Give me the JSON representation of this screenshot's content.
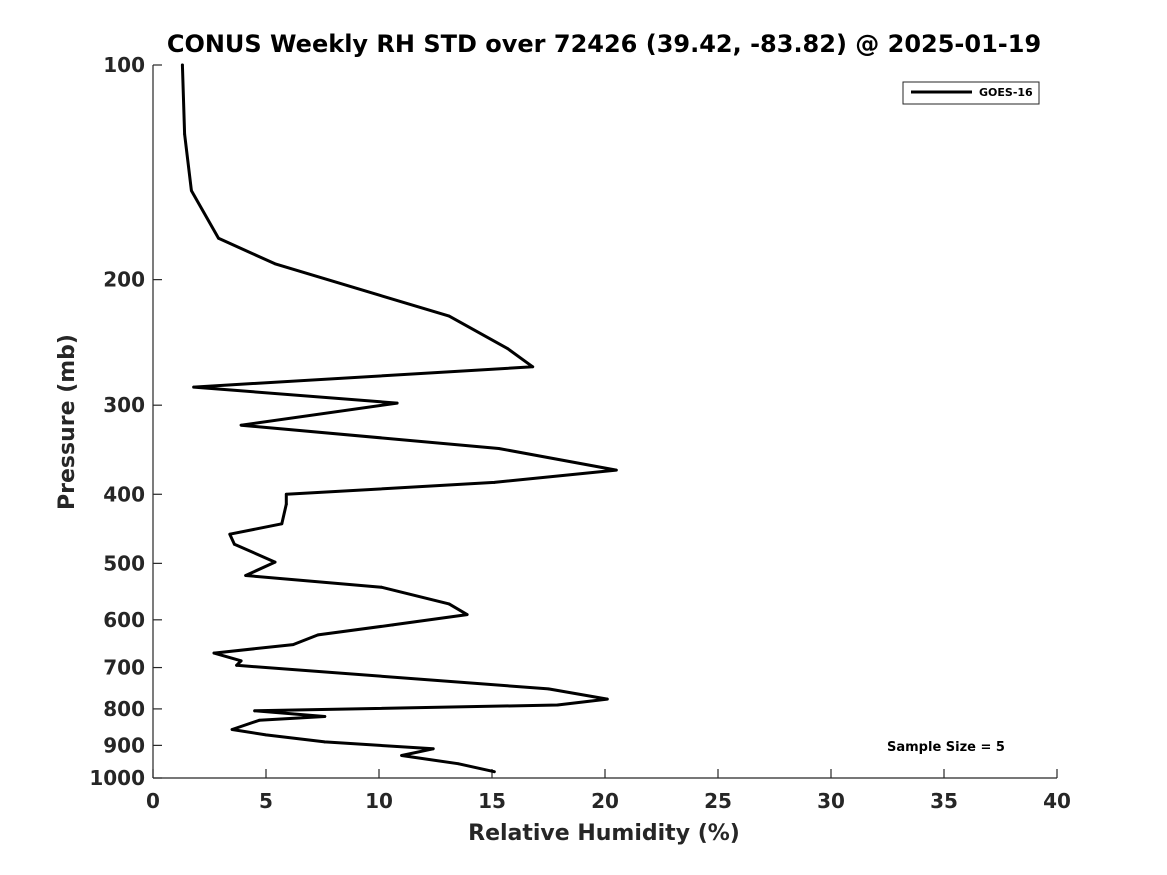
{
  "chart_data": {
    "type": "line",
    "title": "CONUS Weekly RH STD over 72426 (39.42, -83.82) @ 2025-01-19",
    "xlabel": "Relative Humidity (%)",
    "ylabel": "Pressure (mb)",
    "xlim": [
      0,
      40
    ],
    "ylim": [
      100,
      1000
    ],
    "y_scale": "log",
    "y_reversed": true,
    "grid": false,
    "x_ticks": [
      0,
      5,
      10,
      15,
      20,
      25,
      30,
      35,
      40
    ],
    "x_tick_labels": [
      "0",
      "5",
      "10",
      "15",
      "20",
      "25",
      "30",
      "35",
      "40"
    ],
    "y_ticks": [
      100,
      200,
      300,
      400,
      500,
      600,
      700,
      800,
      900,
      1000
    ],
    "y_tick_labels": [
      "100",
      "200",
      "300",
      "400",
      "500",
      "600",
      "700",
      "800",
      "900",
      "1000"
    ],
    "legend": {
      "position": "top-right",
      "entries": [
        "GOES-16"
      ]
    },
    "annotation": "Sample Size = 5",
    "series": [
      {
        "name": "GOES-16",
        "color": "#000000",
        "x": [
          1.3,
          1.4,
          1.7,
          2.9,
          5.4,
          13.1,
          15.7,
          16.8,
          1.8,
          10.8,
          3.9,
          15.3,
          20.5,
          15.1,
          5.9,
          5.9,
          5.7,
          3.4,
          3.6,
          5.4,
          4.1,
          10.1,
          13.1,
          13.9,
          10.6,
          7.3,
          6.2,
          2.7,
          3.9,
          3.7,
          17.5,
          20.1,
          17.9,
          4.5,
          7.6,
          4.7,
          3.5,
          5.0,
          7.6,
          12.4,
          11.0,
          13.5,
          15.1
        ],
        "y": [
          100,
          125,
          150,
          175,
          190,
          225,
          250,
          265,
          283,
          298,
          320,
          345,
          370,
          385,
          400,
          413,
          440,
          455,
          470,
          498,
          520,
          540,
          570,
          590,
          610,
          630,
          650,
          668,
          685,
          695,
          750,
          775,
          790,
          805,
          820,
          830,
          855,
          870,
          890,
          910,
          930,
          955,
          980
        ]
      }
    ]
  }
}
